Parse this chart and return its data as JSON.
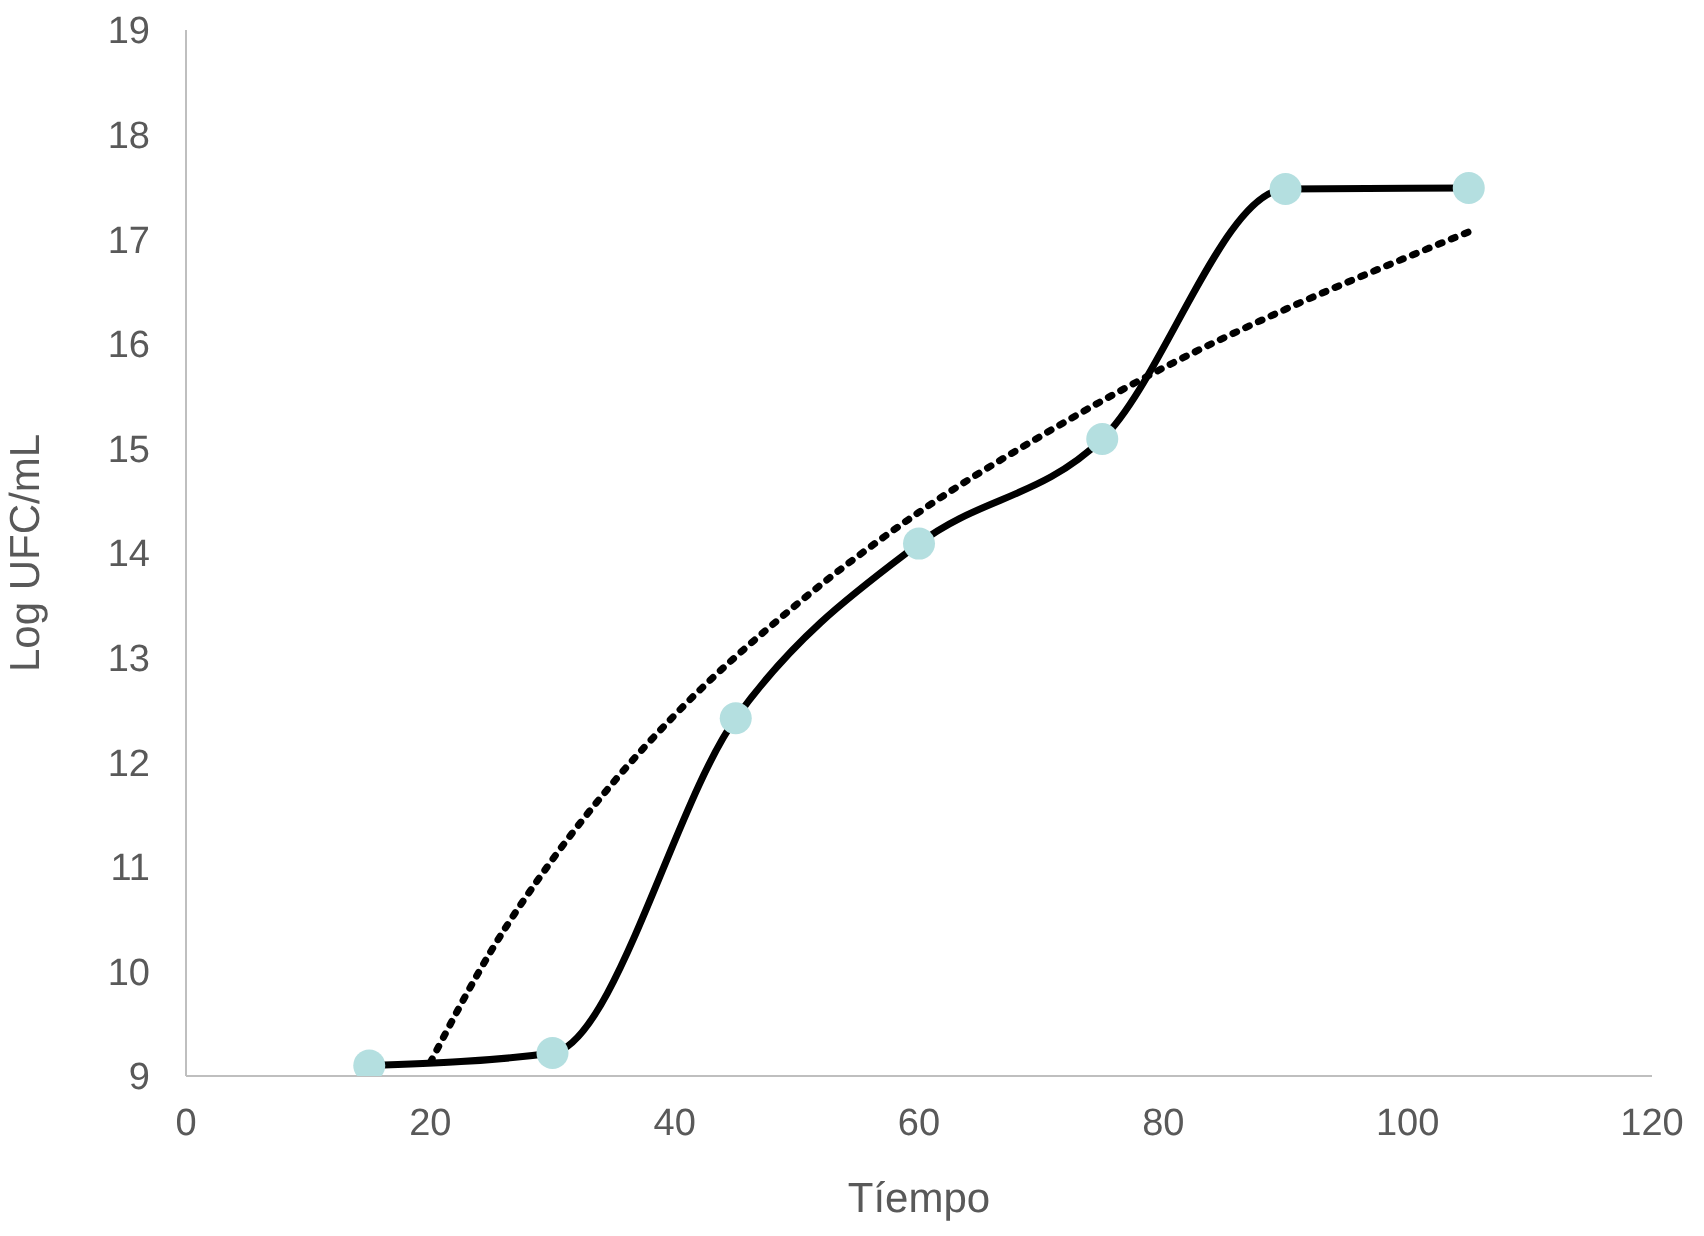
{
  "chart_data": {
    "type": "line",
    "xlabel": "Tíempo",
    "ylabel": "Log UFC/mL",
    "xlim": [
      0,
      120
    ],
    "xticks": [
      0,
      20,
      40,
      60,
      80,
      100,
      120
    ],
    "ylim": [
      9,
      19
    ],
    "yticks": [
      9,
      10,
      11,
      12,
      13,
      14,
      15,
      16,
      17,
      18,
      19
    ],
    "grid": false,
    "series": [
      {
        "color": "#000000",
        "colors": [
          "#b4dfe0",
          "#b4dfe0",
          "#b4dfe0",
          "#b4dfe0",
          "#b4dfe0",
          "#b4dfe0",
          "#b4dfe0"
        ],
        "marker": "circle",
        "line_style": "solid",
        "x": [
          15,
          30,
          45,
          60,
          75,
          90,
          105
        ],
        "values": [
          9.1,
          9.22,
          12.42,
          14.09,
          15.09,
          17.48,
          17.49
        ]
      },
      {
        "color": "#000000",
        "marker": "none",
        "line_style": "dotted",
        "x": [
          20,
          25,
          30,
          35,
          40,
          50,
          60,
          70,
          80,
          90,
          100,
          105
        ],
        "values": [
          9.13,
          10.2,
          11.07,
          11.81,
          12.45,
          13.51,
          14.39,
          15.12,
          15.77,
          16.33,
          16.83,
          17.07
        ]
      }
    ]
  }
}
